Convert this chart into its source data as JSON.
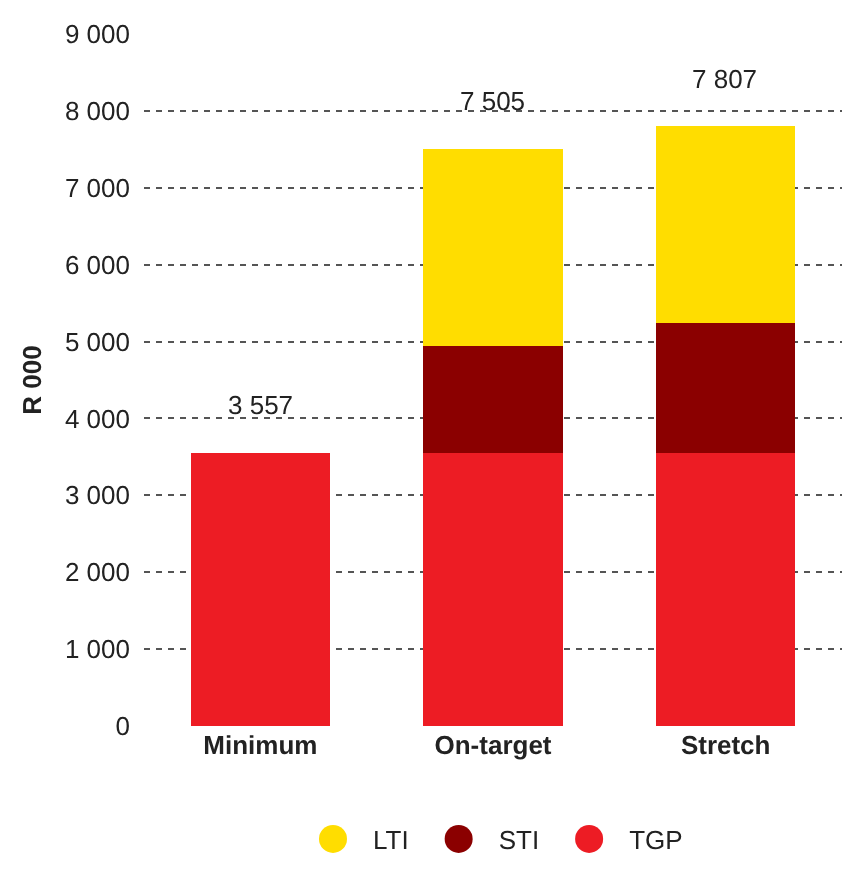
{
  "chart_data": {
    "type": "bar",
    "stacked": true,
    "ylabel": "R 000",
    "categories": [
      "Minimum",
      "On-target",
      "Stretch"
    ],
    "series": [
      {
        "name": "TGP",
        "color": "#ed1c24",
        "values": [
          3557,
          3557,
          3557
        ]
      },
      {
        "name": "STI",
        "color": "#8b0000",
        "values": [
          null,
          1380,
          1680
        ]
      },
      {
        "name": "LTI",
        "color": "#ffdd00",
        "values": [
          null,
          2568,
          2570
        ]
      }
    ],
    "totals": [
      "3 557",
      "7 505",
      "7 807"
    ],
    "ylim": [
      0,
      9000
    ],
    "yticks": [
      0,
      {
        "value": 1000,
        "label": "1 000"
      },
      {
        "value": 2000,
        "label": "2 000"
      },
      {
        "value": 3000,
        "label": "3 000"
      },
      {
        "value": 4000,
        "label": "4 000"
      },
      {
        "value": 5000,
        "label": "5 000"
      },
      {
        "value": 6000,
        "label": "6 000"
      },
      {
        "value": 7000,
        "label": "7 000"
      },
      {
        "value": 8000,
        "label": "8 000"
      },
      {
        "value": 9000,
        "label": "9 000"
      }
    ],
    "grid": "y",
    "legend": "bottom"
  }
}
